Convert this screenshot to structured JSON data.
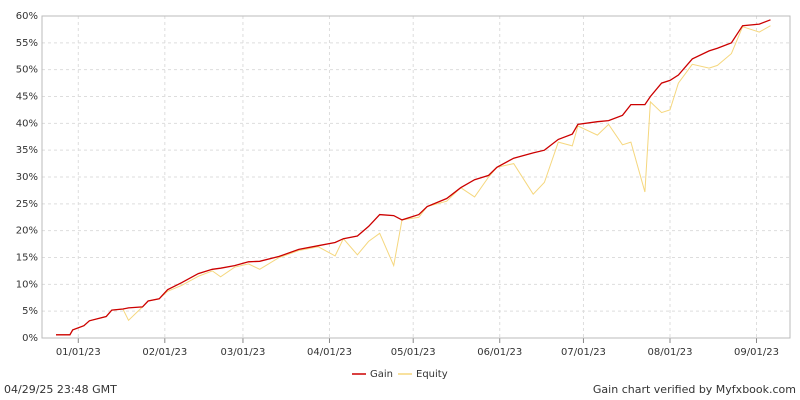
{
  "chart_data": {
    "type": "line",
    "x": [
      "12/24/22",
      "12/29/22",
      "12/30/22",
      "01/03/23",
      "01/05/23",
      "01/11/23",
      "01/13/23",
      "01/17/23",
      "01/19/23",
      "01/24/23",
      "01/26/23",
      "01/30/23",
      "02/02/23",
      "02/07/23",
      "02/13/23",
      "02/18/23",
      "02/21/23",
      "02/26/23",
      "03/03/23",
      "03/07/23",
      "03/14/23",
      "03/21/23",
      "03/28/23",
      "04/03/23",
      "04/06/23",
      "04/11/23",
      "04/15/23",
      "04/19/23",
      "04/24/23",
      "04/27/23",
      "05/03/23",
      "05/06/23",
      "05/13/23",
      "05/18/23",
      "05/23/23",
      "05/28/23",
      "05/31/23",
      "06/06/23",
      "06/13/23",
      "06/17/23",
      "06/22/23",
      "06/27/23",
      "06/29/23",
      "07/06/23",
      "07/10/23",
      "07/15/23",
      "07/18/23",
      "07/23/23",
      "07/25/23",
      "07/29/23",
      "08/01/23",
      "08/04/23",
      "08/09/23",
      "08/15/23",
      "08/18/23",
      "08/23/23",
      "08/27/23",
      "09/02/23",
      "09/06/23"
    ],
    "series": [
      {
        "name": "Gain",
        "color": "#cc0000",
        "values": [
          0.6,
          0.6,
          1.5,
          2.3,
          3.2,
          4.0,
          5.2,
          5.4,
          5.6,
          5.8,
          6.9,
          7.3,
          9.0,
          10.3,
          12.0,
          12.8,
          13.0,
          13.5,
          14.2,
          14.3,
          15.2,
          16.5,
          17.2,
          17.8,
          18.5,
          19.0,
          20.8,
          23.0,
          22.8,
          22.0,
          23.0,
          24.5,
          26.0,
          28.0,
          29.5,
          30.3,
          31.8,
          33.5,
          34.5,
          35.0,
          37.0,
          38.0,
          39.8,
          40.3,
          40.5,
          41.5,
          43.5,
          43.5,
          45.0,
          47.5,
          48.0,
          49.0,
          52.0,
          53.5,
          54.0,
          55.0,
          58.2,
          58.5,
          59.3
        ]
      },
      {
        "name": "Equity",
        "color": "#f5d77e",
        "values": [
          0.6,
          0.6,
          1.5,
          2.3,
          3.2,
          4.0,
          5.2,
          5.4,
          3.3,
          5.8,
          6.9,
          7.3,
          8.7,
          9.8,
          11.5,
          12.5,
          11.4,
          13.2,
          13.8,
          12.8,
          15.0,
          16.3,
          17.0,
          15.3,
          18.5,
          15.5,
          18.0,
          19.5,
          13.5,
          22.0,
          22.5,
          24.5,
          25.5,
          28.0,
          26.3,
          30.0,
          31.8,
          32.5,
          26.8,
          29.0,
          36.5,
          35.8,
          39.5,
          37.8,
          39.8,
          36.0,
          36.5,
          27.2,
          44.0,
          42.0,
          42.5,
          47.5,
          51.0,
          50.3,
          50.8,
          53.0,
          58.0,
          57.0,
          58.2
        ]
      }
    ],
    "xlim": [
      "12/19/22",
      "09/13/23"
    ],
    "xticks": [
      "01/01/23",
      "02/01/23",
      "03/01/23",
      "04/01/23",
      "05/01/23",
      "06/01/23",
      "07/01/23",
      "08/01/23",
      "09/01/23"
    ],
    "ylim": [
      0,
      60
    ],
    "yticks": [
      {
        "value": 0,
        "label": "0%"
      },
      {
        "value": 5,
        "label": "5%"
      },
      {
        "value": 10,
        "label": "10%"
      },
      {
        "value": 15,
        "label": "15%"
      },
      {
        "value": 20,
        "label": "20%"
      },
      {
        "value": 25,
        "label": "25%"
      },
      {
        "value": 30,
        "label": "30%"
      },
      {
        "value": 35,
        "label": "35%"
      },
      {
        "value": 40,
        "label": "40%"
      },
      {
        "value": 45,
        "label": "45%"
      },
      {
        "value": 50,
        "label": "50%"
      },
      {
        "value": 55,
        "label": "55%"
      },
      {
        "value": 60,
        "label": "60%"
      }
    ],
    "grid": true,
    "legend": "bottom",
    "timestamp": "04/29/25 23:48 GMT",
    "footer": "Gain chart verified by Myfxbook.com"
  }
}
